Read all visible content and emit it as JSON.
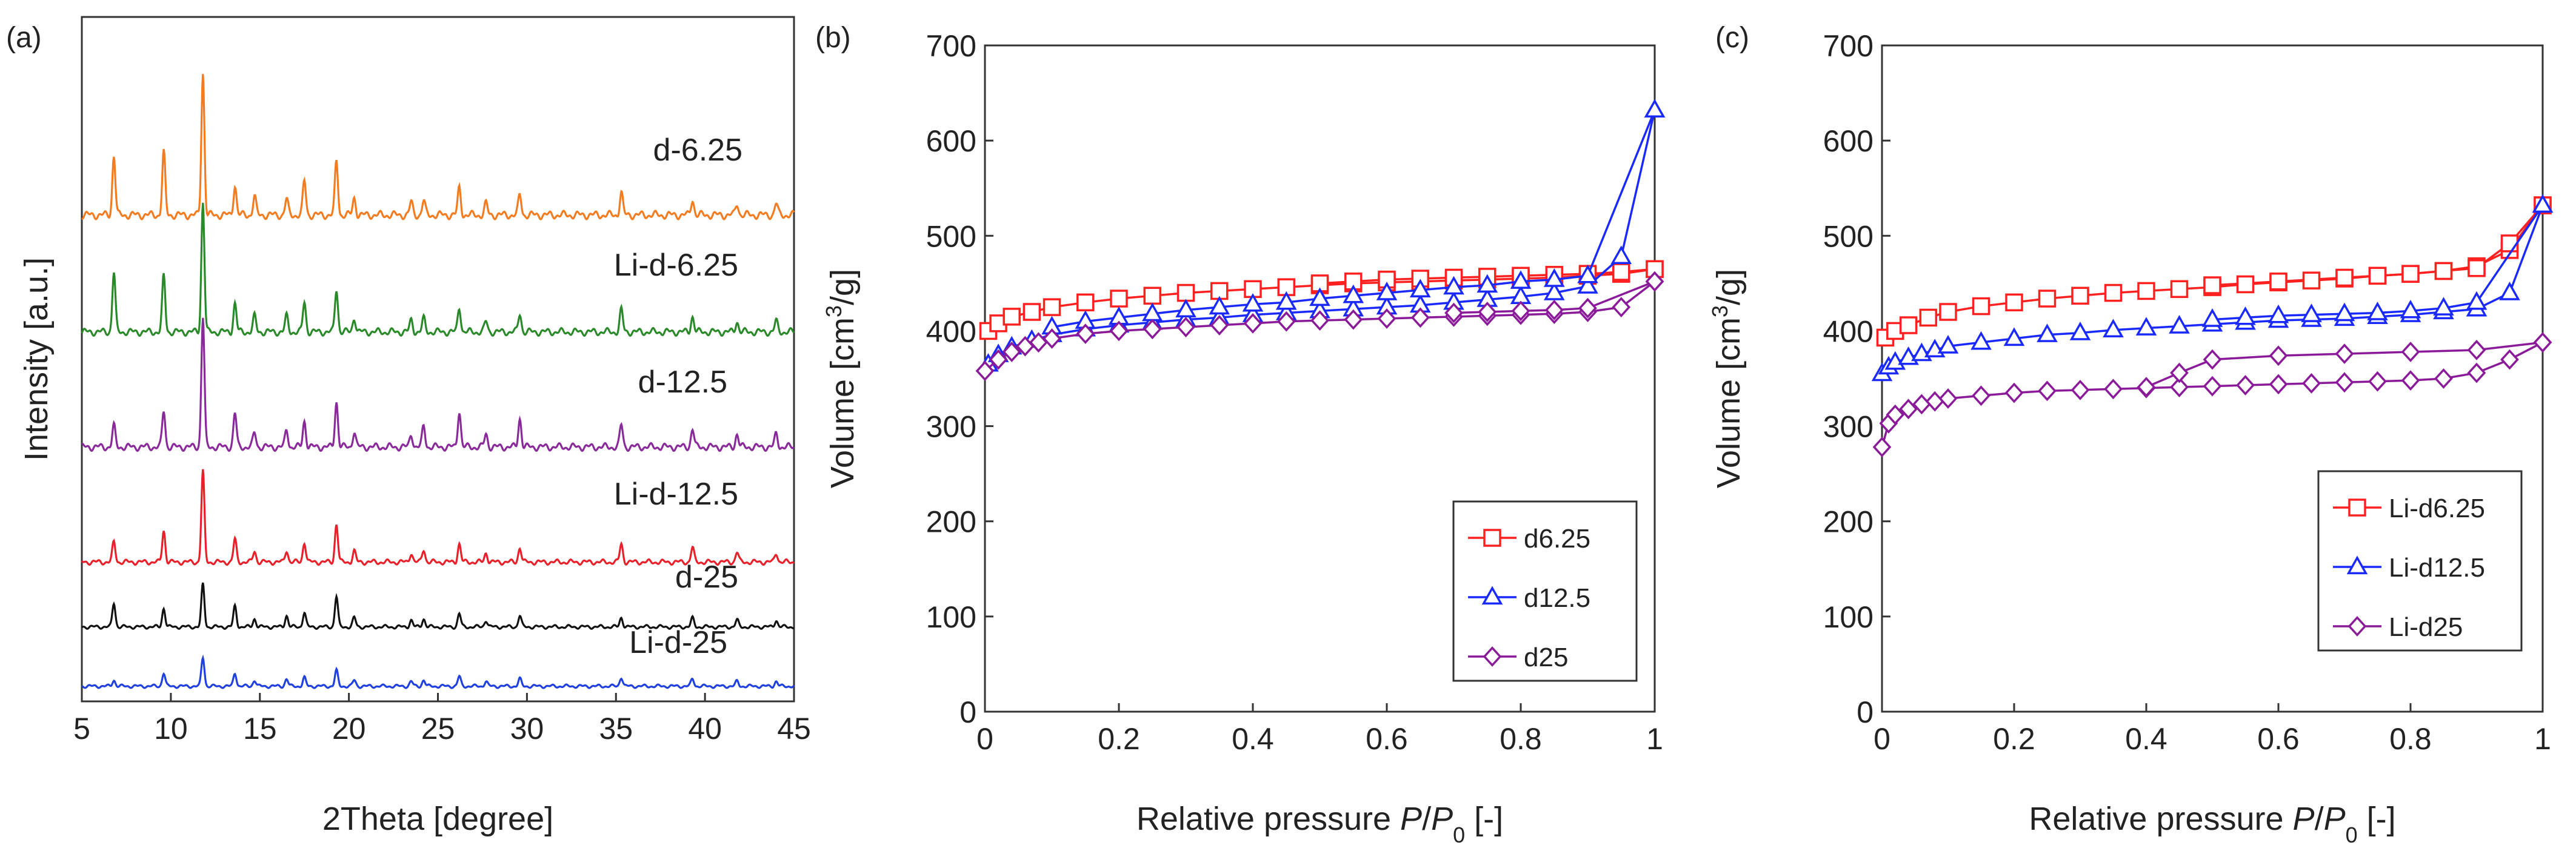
{
  "chart_data": [
    {
      "panel": "(a)",
      "type": "line",
      "xlabel": "2Theta [degree]",
      "ylabel": "Intensity [a.u.]",
      "xlim": [
        5,
        45
      ],
      "xticks": [
        5,
        10,
        15,
        20,
        25,
        30,
        35,
        40,
        45
      ],
      "y_ticks_shown": false,
      "peaks_common_x": [
        6.8,
        9.6,
        11.8,
        13.6,
        14.7,
        16.5,
        17.5,
        19.3,
        20.3,
        23.5,
        24.2,
        26.2,
        27.7,
        29.6,
        35.3,
        39.3,
        41.8,
        44
      ],
      "series": [
        {
          "name": "d-6.25",
          "color": "#f47c20",
          "peak_heights": [
            0.42,
            0.44,
            1.0,
            0.21,
            0.13,
            0.11,
            0.24,
            0.38,
            0.12,
            0.09,
            0.1,
            0.19,
            0.08,
            0.14,
            0.16,
            0.11,
            0.08,
            0.08
          ]
        },
        {
          "name": "Li-d-6.25",
          "color": "#2a8a2a",
          "peak_heights": [
            0.46,
            0.43,
            1.0,
            0.22,
            0.12,
            0.12,
            0.23,
            0.33,
            0.11,
            0.09,
            0.1,
            0.19,
            0.08,
            0.14,
            0.17,
            0.12,
            0.08,
            0.08
          ]
        },
        {
          "name": "d-12.5",
          "color": "#8a2a9a",
          "peak_heights": [
            0.16,
            0.28,
            1.0,
            0.26,
            0.11,
            0.13,
            0.2,
            0.35,
            0.12,
            0.1,
            0.16,
            0.28,
            0.1,
            0.22,
            0.17,
            0.14,
            0.1,
            0.1
          ]
        },
        {
          "name": "Li-d-12.5",
          "color": "#e8202a",
          "peak_heights": [
            0.22,
            0.35,
            1.0,
            0.25,
            0.12,
            0.13,
            0.22,
            0.42,
            0.12,
            0.1,
            0.14,
            0.2,
            0.1,
            0.16,
            0.2,
            0.16,
            0.11,
            0.1
          ]
        },
        {
          "name": "d-25",
          "color": "#111111",
          "peak_heights": [
            0.36,
            0.28,
            0.64,
            0.31,
            0.12,
            0.17,
            0.22,
            0.46,
            0.14,
            0.1,
            0.12,
            0.2,
            0.1,
            0.17,
            0.14,
            0.13,
            0.1,
            0.1
          ]
        },
        {
          "name": "Li-d-25",
          "color": "#2040e0",
          "peak_heights": [
            0.1,
            0.22,
            0.48,
            0.22,
            0.1,
            0.12,
            0.14,
            0.26,
            0.1,
            0.08,
            0.1,
            0.16,
            0.08,
            0.12,
            0.15,
            0.12,
            0.08,
            0.08
          ]
        }
      ]
    },
    {
      "panel": "(b)",
      "type": "line",
      "xlabel_parts": {
        "pre": "Relative pressure ",
        "italic1": "P",
        "slash": "/",
        "italic2": "P",
        "sub": "0",
        "post": " [-]"
      },
      "ylabel_parts": {
        "pre": "Volume [cm",
        "sup": "3",
        "post": "/g]"
      },
      "xlim": [
        0,
        1
      ],
      "ylim": [
        0,
        700
      ],
      "xticks": [
        "0",
        "0.2",
        "0.4",
        "0.6",
        "0.8",
        "1"
      ],
      "yticks": [
        "0",
        "100",
        "200",
        "300",
        "400",
        "500",
        "600",
        "700"
      ],
      "legend_position": "bottom-right",
      "series": [
        {
          "name": "d6.25",
          "color": "#ff2020",
          "marker": "square",
          "adsorption": {
            "x": [
              0.005,
              0.02,
              0.04,
              0.07,
              0.1,
              0.15,
              0.2,
              0.25,
              0.3,
              0.35,
              0.4,
              0.45,
              0.5,
              0.55,
              0.6,
              0.65,
              0.7,
              0.75,
              0.8,
              0.85,
              0.9,
              0.95,
              1.0
            ],
            "y": [
              400,
              408,
              415,
              420,
              425,
              430,
              434,
              437,
              440,
              442,
              444,
              446,
              448,
              450,
              451,
              452,
              453,
              454,
              455,
              456,
              458,
              460,
              465
            ]
          },
          "desorption": {
            "x": [
              1.0,
              0.95,
              0.9,
              0.85,
              0.8,
              0.75,
              0.7,
              0.65,
              0.6,
              0.55,
              0.5
            ],
            "y": [
              465,
              462,
              460,
              459,
              458,
              457,
              456,
              455,
              454,
              452,
              450
            ]
          }
        },
        {
          "name": "d12.5",
          "color": "#1a2aff",
          "marker": "triangle",
          "adsorption": {
            "x": [
              0.005,
              0.02,
              0.04,
              0.07,
              0.1,
              0.15,
              0.2,
              0.25,
              0.3,
              0.35,
              0.4,
              0.45,
              0.5,
              0.55,
              0.6,
              0.65,
              0.7,
              0.75,
              0.8,
              0.85,
              0.9,
              0.95,
              1.0
            ],
            "y": [
              365,
              375,
              383,
              390,
              396,
              402,
              406,
              409,
              412,
              414,
              417,
              419,
              421,
              423,
              425,
              427,
              430,
              433,
              436,
              440,
              447,
              478,
              632
            ]
          },
          "desorption": {
            "x": [
              1.0,
              0.9,
              0.85,
              0.8,
              0.75,
              0.7,
              0.65,
              0.6,
              0.55,
              0.5,
              0.45,
              0.4,
              0.35,
              0.3,
              0.25,
              0.2,
              0.15,
              0.1
            ],
            "y": [
              632,
              458,
              454,
              452,
              448,
              446,
              443,
              440,
              437,
              434,
              430,
              428,
              425,
              422,
              418,
              414,
              410,
              404
            ]
          }
        },
        {
          "name": "d25",
          "color": "#8a1a9a",
          "marker": "diamond",
          "adsorption": {
            "x": [
              0.0,
              0.02,
              0.04,
              0.06,
              0.08,
              0.1,
              0.15,
              0.2,
              0.25,
              0.3,
              0.35,
              0.4,
              0.45,
              0.5,
              0.55,
              0.6,
              0.65,
              0.7,
              0.75,
              0.8,
              0.85,
              0.9,
              0.95,
              1.0
            ],
            "y": [
              358,
              370,
              378,
              384,
              388,
              392,
              397,
              400,
              402,
              404,
              406,
              408,
              410,
              411,
              412,
              413,
              414,
              415,
              416,
              417,
              418,
              420,
              425,
              452
            ]
          },
          "desorption": {
            "x": [
              1.0,
              0.9,
              0.85,
              0.8,
              0.75,
              0.7
            ],
            "y": [
              452,
              424,
              422,
              421,
              420,
              419
            ]
          }
        }
      ]
    },
    {
      "panel": "(c)",
      "type": "line",
      "xlabel_parts": {
        "pre": "Relative pressure ",
        "italic1": "P",
        "slash": "/",
        "italic2": "P",
        "sub": "0",
        "post": " [-]"
      },
      "ylabel_parts": {
        "pre": "Volume [cm",
        "sup": "3",
        "post": "/g]"
      },
      "xlim": [
        0,
        1
      ],
      "ylim": [
        0,
        700
      ],
      "xticks": [
        "0",
        "0.2",
        "0.4",
        "0.6",
        "0.8",
        "1"
      ],
      "yticks": [
        "0",
        "100",
        "200",
        "300",
        "400",
        "500",
        "600",
        "700"
      ],
      "legend_position": "bottom-right",
      "series": [
        {
          "name": "Li-d6.25",
          "color": "#ff2020",
          "marker": "square",
          "adsorption": {
            "x": [
              0.005,
              0.02,
              0.04,
              0.07,
              0.1,
              0.15,
              0.2,
              0.25,
              0.3,
              0.35,
              0.4,
              0.45,
              0.5,
              0.55,
              0.6,
              0.65,
              0.7,
              0.75,
              0.8,
              0.85,
              0.9,
              0.95,
              1.0
            ],
            "y": [
              393,
              400,
              406,
              414,
              420,
              426,
              430,
              434,
              437,
              440,
              442,
              444,
              446,
              449,
              451,
              453,
              455,
              458,
              460,
              463,
              468,
              485,
              532
            ]
          },
          "desorption": {
            "x": [
              1.0,
              0.95,
              0.9,
              0.85,
              0.8,
              0.75,
              0.7,
              0.6,
              0.5
            ],
            "y": [
              532,
              492,
              466,
              463,
              460,
              458,
              456,
              452,
              448
            ]
          }
        },
        {
          "name": "Li-d12.5",
          "color": "#1a2aff",
          "marker": "triangle",
          "adsorption": {
            "x": [
              0.0,
              0.01,
              0.02,
              0.04,
              0.06,
              0.08,
              0.1,
              0.15,
              0.2,
              0.25,
              0.3,
              0.35,
              0.4,
              0.45,
              0.5,
              0.55,
              0.6,
              0.65,
              0.7,
              0.75,
              0.8,
              0.85,
              0.9,
              0.95,
              1.0
            ],
            "y": [
              355,
              362,
              367,
              372,
              376,
              380,
              384,
              388,
              392,
              396,
              398,
              401,
              403,
              405,
              407,
              409,
              411,
              412,
              413,
              415,
              417,
              420,
              423,
              440,
              532
            ]
          },
          "desorption": {
            "x": [
              1.0,
              0.9,
              0.85,
              0.8,
              0.75,
              0.7,
              0.65,
              0.6,
              0.55,
              0.5
            ],
            "y": [
              532,
              430,
              424,
              421,
              419,
              418,
              417,
              416,
              414,
              412
            ]
          }
        },
        {
          "name": "Li-d25",
          "color": "#8a1a9a",
          "marker": "diamond",
          "adsorption": {
            "x": [
              0.0,
              0.01,
              0.02,
              0.04,
              0.06,
              0.08,
              0.1,
              0.15,
              0.2,
              0.25,
              0.3,
              0.35,
              0.4,
              0.45,
              0.5,
              0.55,
              0.6,
              0.65,
              0.7,
              0.75,
              0.8,
              0.85,
              0.9,
              0.95,
              1.0
            ],
            "y": [
              278,
              303,
              312,
              318,
              323,
              326,
              329,
              332,
              335,
              337,
              338,
              339,
              340,
              341,
              342,
              343,
              344,
              345,
              346,
              347,
              348,
              350,
              356,
              370,
              388
            ]
          },
          "desorption": {
            "x": [
              1.0,
              0.9,
              0.8,
              0.7,
              0.6,
              0.5,
              0.45,
              0.4
            ],
            "y": [
              388,
              380,
              378,
              376,
              374,
              370,
              356,
              341
            ]
          }
        }
      ]
    }
  ]
}
